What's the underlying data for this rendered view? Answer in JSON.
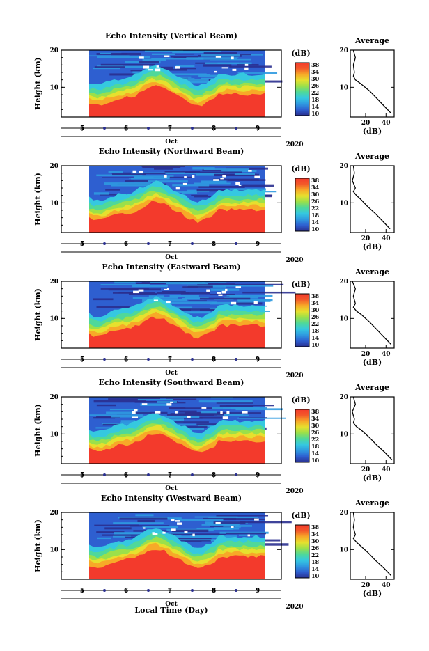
{
  "figure": {
    "xlabel": "Local Time (Day)",
    "colorscale": [
      "#2a2f8f",
      "#2e5fd0",
      "#2f9ae0",
      "#35c8e0",
      "#4fd89a",
      "#9be04a",
      "#e6e02e",
      "#f7a928",
      "#f35a2a",
      "#f33a2c"
    ]
  },
  "chart_data": [
    {
      "type": "heatmap",
      "title": "Echo Intensity (Vertical Beam)",
      "ylabel": "Height (km)",
      "ylim": [
        2,
        20
      ],
      "yticks": [
        "20",
        "10"
      ],
      "xticks": [
        "5",
        "6",
        "7",
        "8",
        "9"
      ],
      "xunit": "Oct",
      "year": "2020",
      "colorbar": {
        "label": "(dB)",
        "ticks": [
          "38",
          "34",
          "30",
          "26",
          "22",
          "18",
          "14",
          "10"
        ],
        "range": [
          10,
          38
        ]
      },
      "average": {
        "title": "Average",
        "xlabel": "(dB)",
        "xticks": [
          "20",
          "40"
        ],
        "xlim": [
          5,
          48
        ],
        "ylim": [
          2,
          20
        ],
        "height": [
          3,
          5,
          7,
          9,
          11,
          12,
          13,
          14,
          16,
          18,
          20
        ],
        "db": [
          45,
          38,
          31,
          24,
          15,
          10,
          8,
          9,
          8,
          10,
          8
        ]
      }
    },
    {
      "type": "heatmap",
      "title": "Echo Intensity (Northward Beam)",
      "ylabel": "Height (km)",
      "ylim": [
        2,
        20
      ],
      "yticks": [
        "20",
        "10"
      ],
      "xticks": [
        "5",
        "6",
        "7",
        "8",
        "9"
      ],
      "xunit": "Oct",
      "year": "2020",
      "colorbar": {
        "label": "(dB)",
        "ticks": [
          "38",
          "34",
          "30",
          "26",
          "22",
          "18",
          "14",
          "10"
        ],
        "range": [
          10,
          38
        ]
      },
      "average": {
        "title": "Average",
        "xlabel": "(dB)",
        "xticks": [
          "20",
          "40"
        ],
        "xlim": [
          5,
          48
        ],
        "ylim": [
          2,
          20
        ],
        "height": [
          3,
          5,
          7,
          9,
          11,
          12,
          13,
          14,
          16,
          18,
          20
        ],
        "db": [
          44,
          37,
          30,
          22,
          15,
          11,
          8,
          10,
          7,
          9,
          8
        ]
      }
    },
    {
      "type": "heatmap",
      "title": "Echo Intensity (Eastward Beam)",
      "ylabel": "Height (km)",
      "ylim": [
        2,
        20
      ],
      "yticks": [
        "20",
        "10"
      ],
      "xticks": [
        "5",
        "6",
        "7",
        "8",
        "9"
      ],
      "xunit": "Oct",
      "year": "2020",
      "colorbar": {
        "label": "(dB)",
        "ticks": [
          "38",
          "34",
          "30",
          "26",
          "22",
          "18",
          "14",
          "10"
        ],
        "range": [
          10,
          38
        ]
      },
      "average": {
        "title": "Average",
        "xlabel": "(dB)",
        "xticks": [
          "20",
          "40"
        ],
        "xlim": [
          5,
          48
        ],
        "ylim": [
          2,
          20
        ],
        "height": [
          3,
          5,
          7,
          9,
          11,
          12,
          13,
          14,
          16,
          18,
          20
        ],
        "db": [
          45,
          38,
          31,
          24,
          16,
          11,
          8,
          10,
          8,
          10,
          7
        ]
      }
    },
    {
      "type": "heatmap",
      "title": "Echo Intensity (Southward Beam)",
      "ylabel": "Height (km)",
      "ylim": [
        2,
        20
      ],
      "yticks": [
        "20",
        "10"
      ],
      "xticks": [
        "5",
        "6",
        "7",
        "8",
        "9"
      ],
      "xunit": "Oct",
      "year": "2020",
      "colorbar": {
        "label": "(dB)",
        "ticks": [
          "38",
          "34",
          "30",
          "26",
          "22",
          "18",
          "14",
          "10"
        ],
        "range": [
          10,
          38
        ]
      },
      "average": {
        "title": "Average",
        "xlabel": "(dB)",
        "xticks": [
          "20",
          "40"
        ],
        "xlim": [
          5,
          48
        ],
        "ylim": [
          2,
          20
        ],
        "height": [
          3,
          5,
          7,
          9,
          11,
          12,
          13,
          14,
          16,
          18,
          20
        ],
        "db": [
          46,
          39,
          31,
          24,
          16,
          11,
          8,
          9,
          7,
          10,
          8
        ]
      }
    },
    {
      "type": "heatmap",
      "title": "Echo Intensity (Westward Beam)",
      "ylabel": "Height (km)",
      "ylim": [
        2,
        20
      ],
      "yticks": [
        "20",
        "10"
      ],
      "xticks": [
        "5",
        "6",
        "7",
        "8",
        "9"
      ],
      "xunit": "Oct",
      "year": "2020",
      "colorbar": {
        "label": "(dB)",
        "ticks": [
          "38",
          "34",
          "30",
          "26",
          "22",
          "18",
          "14",
          "10"
        ],
        "range": [
          10,
          38
        ]
      },
      "average": {
        "title": "Average",
        "xlabel": "(dB)",
        "xticks": [
          "20",
          "40"
        ],
        "xlim": [
          5,
          48
        ],
        "ylim": [
          2,
          20
        ],
        "height": [
          3,
          5,
          7,
          9,
          11,
          12,
          13,
          14,
          16,
          18,
          20
        ],
        "db": [
          45,
          38,
          30,
          23,
          15,
          11,
          8,
          10,
          8,
          9,
          8
        ]
      }
    }
  ]
}
